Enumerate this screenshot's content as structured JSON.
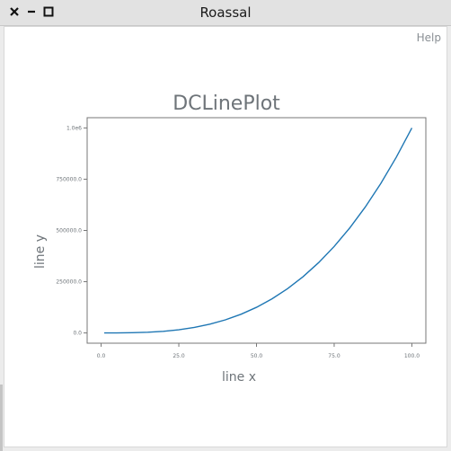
{
  "window": {
    "title": "Roassal",
    "close_icon": "close-icon",
    "minimize_icon": "minimize-icon",
    "maximize_icon": "maximize-icon"
  },
  "help_label": "Help",
  "colors": {
    "line": "#1f77b4",
    "frame": "#777777",
    "text": "#6e7479"
  },
  "chart_data": {
    "type": "line",
    "title": "DCLinePlot",
    "xlabel": "line x",
    "ylabel": "line y",
    "x": [
      1,
      5,
      10,
      15,
      20,
      25,
      30,
      35,
      40,
      45,
      50,
      55,
      60,
      65,
      70,
      75,
      80,
      85,
      90,
      95,
      100
    ],
    "series": [
      {
        "values": [
          1,
          125,
          1000,
          3375,
          8000,
          15625,
          27000,
          42875,
          64000,
          91125,
          125000,
          166375,
          216000,
          274625,
          343000,
          421875,
          512000,
          614125,
          729000,
          857375,
          1000000
        ]
      }
    ],
    "xlim": [
      -4.5,
      104.5
    ],
    "ylim": [
      -50000,
      1050000
    ],
    "xticks": [
      0,
      25,
      50,
      75,
      100
    ],
    "xtick_labels": [
      "0.0",
      "25.0",
      "50.0",
      "75.0",
      "100.0"
    ],
    "yticks": [
      0,
      250000,
      500000,
      750000,
      1000000
    ],
    "ytick_labels": [
      "0.0",
      "250000.0",
      "500000.0",
      "750000.0",
      "1.0e6"
    ],
    "grid": false,
    "legend": "none"
  }
}
